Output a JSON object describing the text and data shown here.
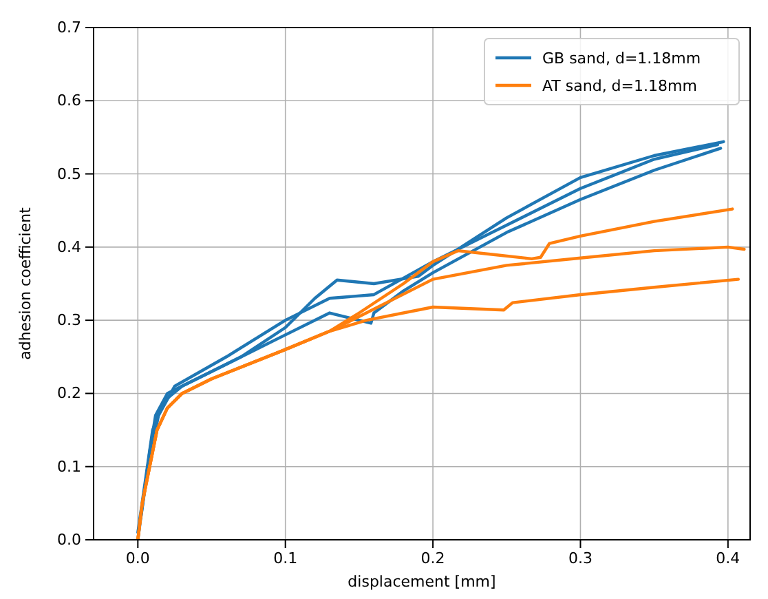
{
  "chart_data": {
    "type": "line",
    "xlabel": "displacement [mm]",
    "ylabel": "adhesion coefficient",
    "xlim": [
      -0.03,
      0.415
    ],
    "xticks": [
      {
        "value": 0,
        "label": "0.0"
      },
      0.1,
      0.2,
      0.3,
      0.4
    ],
    "ylim": [
      0,
      0.7
    ],
    "yticks": [
      {
        "value": 0,
        "label": "0.0"
      },
      0.1,
      0.2,
      0.3,
      0.4,
      0.5,
      0.6,
      0.7
    ],
    "grid": true,
    "legend": "top right",
    "series": [
      {
        "name": "GB sand, d=1.18mm",
        "color": "#1f77b4",
        "x": [
          0,
          0.004,
          0.008,
          0.012,
          0.02,
          0.04,
          0.07,
          0.1,
          0.12,
          0.135,
          0.16,
          0.19,
          0.2,
          0.25,
          0.3,
          0.35,
          0.397
        ],
        "values": [
          0,
          0.06,
          0.12,
          0.17,
          0.2,
          0.22,
          0.25,
          0.29,
          0.33,
          0.355,
          0.35,
          0.36,
          0.375,
          0.44,
          0.495,
          0.525,
          0.544
        ]
      },
      {
        "color": "#1f77b4",
        "x": [
          0,
          0.005,
          0.01,
          0.018,
          0.03,
          0.06,
          0.1,
          0.13,
          0.15,
          0.158,
          0.16,
          0.18,
          0.2,
          0.25,
          0.3,
          0.35,
          0.395
        ],
        "values": [
          0.01,
          0.08,
          0.15,
          0.19,
          0.21,
          0.24,
          0.28,
          0.31,
          0.3,
          0.296,
          0.31,
          0.34,
          0.365,
          0.42,
          0.465,
          0.505,
          0.535
        ]
      },
      {
        "color": "#1f77b4",
        "x": [
          0.002,
          0.007,
          0.014,
          0.025,
          0.06,
          0.1,
          0.13,
          0.16,
          0.2,
          0.25,
          0.3,
          0.35,
          0.393
        ],
        "values": [
          0.03,
          0.1,
          0.17,
          0.21,
          0.25,
          0.3,
          0.33,
          0.335,
          0.38,
          0.43,
          0.48,
          0.52,
          0.54
        ]
      },
      {
        "name": "AT sand, d=1.18mm",
        "color": "#ff7f0e",
        "x": [
          0,
          0.003,
          0.008,
          0.013,
          0.02,
          0.03,
          0.05,
          0.1,
          0.13,
          0.15,
          0.18,
          0.2,
          0.217,
          0.24,
          0.267,
          0.273,
          0.279,
          0.3,
          0.35,
          0.403
        ],
        "values": [
          0,
          0.05,
          0.1,
          0.15,
          0.18,
          0.2,
          0.22,
          0.26,
          0.285,
          0.31,
          0.35,
          0.38,
          0.395,
          0.39,
          0.384,
          0.386,
          0.405,
          0.415,
          0.435,
          0.452
        ]
      },
      {
        "color": "#ff7f0e",
        "x": [
          0,
          0.003,
          0.008,
          0.013,
          0.02,
          0.03,
          0.05,
          0.1,
          0.13,
          0.15,
          0.2,
          0.25,
          0.3,
          0.35,
          0.4,
          0.411
        ],
        "values": [
          0,
          0.05,
          0.1,
          0.15,
          0.18,
          0.2,
          0.22,
          0.26,
          0.285,
          0.305,
          0.356,
          0.375,
          0.385,
          0.395,
          0.4,
          0.397
        ]
      },
      {
        "color": "#ff7f0e",
        "x": [
          0,
          0.003,
          0.008,
          0.013,
          0.02,
          0.03,
          0.05,
          0.1,
          0.13,
          0.155,
          0.2,
          0.248,
          0.254,
          0.3,
          0.35,
          0.407
        ],
        "values": [
          0,
          0.05,
          0.1,
          0.15,
          0.18,
          0.2,
          0.22,
          0.26,
          0.285,
          0.3,
          0.318,
          0.314,
          0.324,
          0.335,
          0.345,
          0.356
        ]
      }
    ]
  }
}
